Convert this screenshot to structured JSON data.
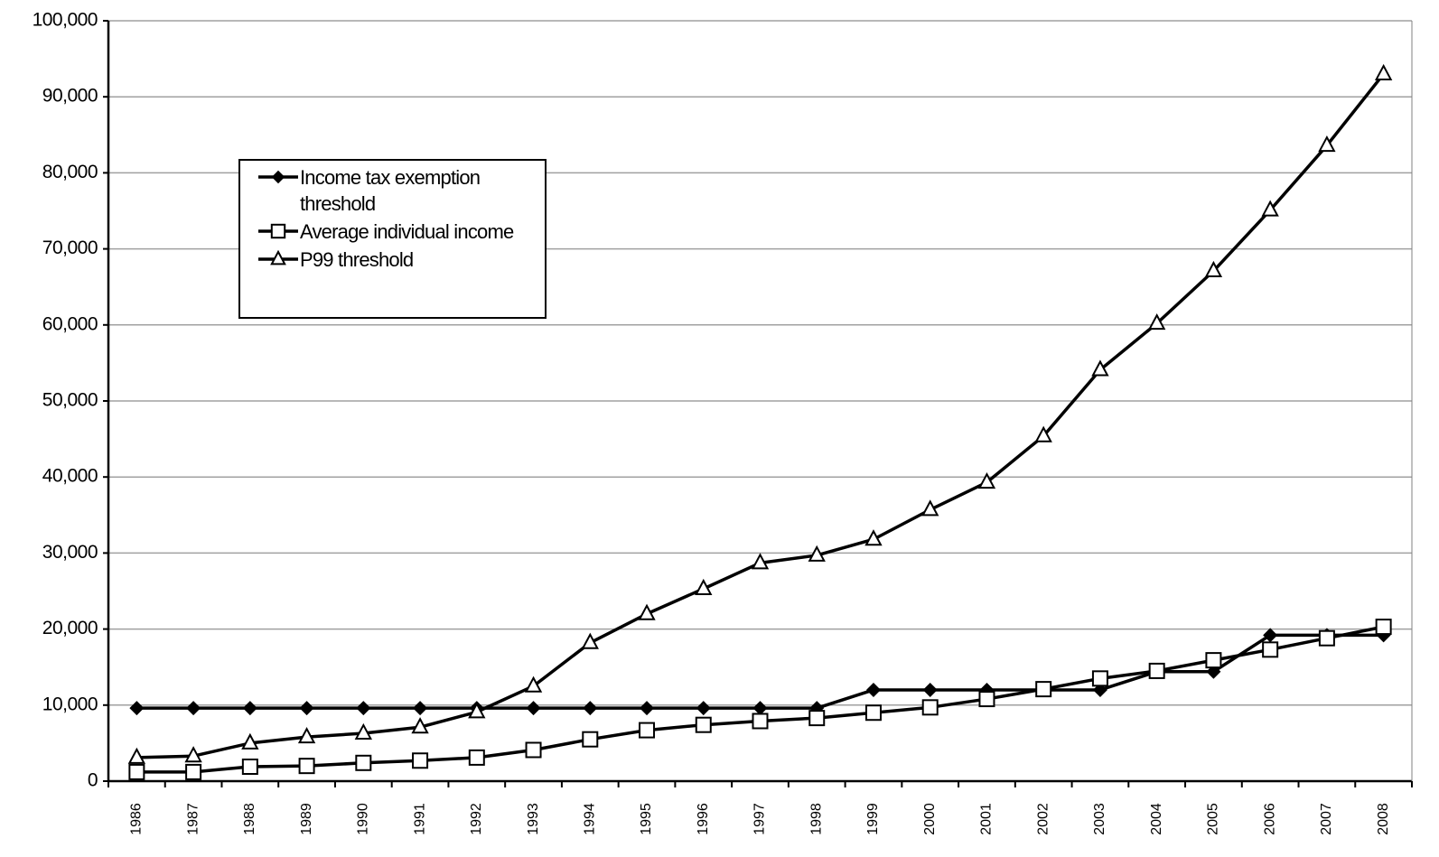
{
  "chart_data": {
    "type": "line",
    "categories": [
      "1986",
      "1987",
      "1988",
      "1989",
      "1990",
      "1991",
      "1992",
      "1993",
      "1994",
      "1995",
      "1996",
      "1997",
      "1998",
      "1999",
      "2000",
      "2001",
      "2002",
      "2003",
      "2004",
      "2005",
      "2006",
      "2007",
      "2008"
    ],
    "series": [
      {
        "name": "Income tax exemption threshold",
        "color": "#000000",
        "marker": "diamond",
        "values": [
          9600,
          9600,
          9600,
          9600,
          9600,
          9600,
          9600,
          9600,
          9600,
          9600,
          9600,
          9600,
          9600,
          12000,
          12000,
          12000,
          12000,
          12000,
          14400,
          14400,
          19200,
          19200,
          19200
        ]
      },
      {
        "name": "Average individual income",
        "color": "#000000",
        "marker": "square",
        "values": [
          1200,
          1200,
          1900,
          2000,
          2400,
          2700,
          3100,
          4100,
          5500,
          6700,
          7400,
          7900,
          8300,
          9000,
          9700,
          10800,
          12100,
          13500,
          14500,
          15900,
          17300,
          18800,
          20300
        ]
      },
      {
        "name": "P99 threshold",
        "color": "#000000",
        "marker": "triangle",
        "values": [
          3100,
          3300,
          5000,
          5800,
          6300,
          7100,
          9100,
          12500,
          18200,
          22000,
          25300,
          28700,
          29700,
          31800,
          35700,
          39300,
          45400,
          54100,
          60200,
          67100,
          75100,
          83600,
          93000
        ]
      }
    ],
    "ylim": [
      0,
      100000
    ],
    "yticks": [
      0,
      {
        "value": 10000,
        "label": "10,000"
      },
      {
        "value": 20000,
        "label": "20,000"
      },
      {
        "value": 30000,
        "label": "30,000"
      },
      {
        "value": 40000,
        "label": "40,000"
      },
      {
        "value": 50000,
        "label": "50,000"
      },
      {
        "value": 60000,
        "label": "60,000"
      },
      {
        "value": 70000,
        "label": "70,000"
      },
      {
        "value": 80000,
        "label": "80,000"
      },
      {
        "value": 90000,
        "label": "90,000"
      },
      {
        "value": 100000,
        "label": "100,000"
      }
    ],
    "grid": true,
    "legend": "top-left"
  }
}
